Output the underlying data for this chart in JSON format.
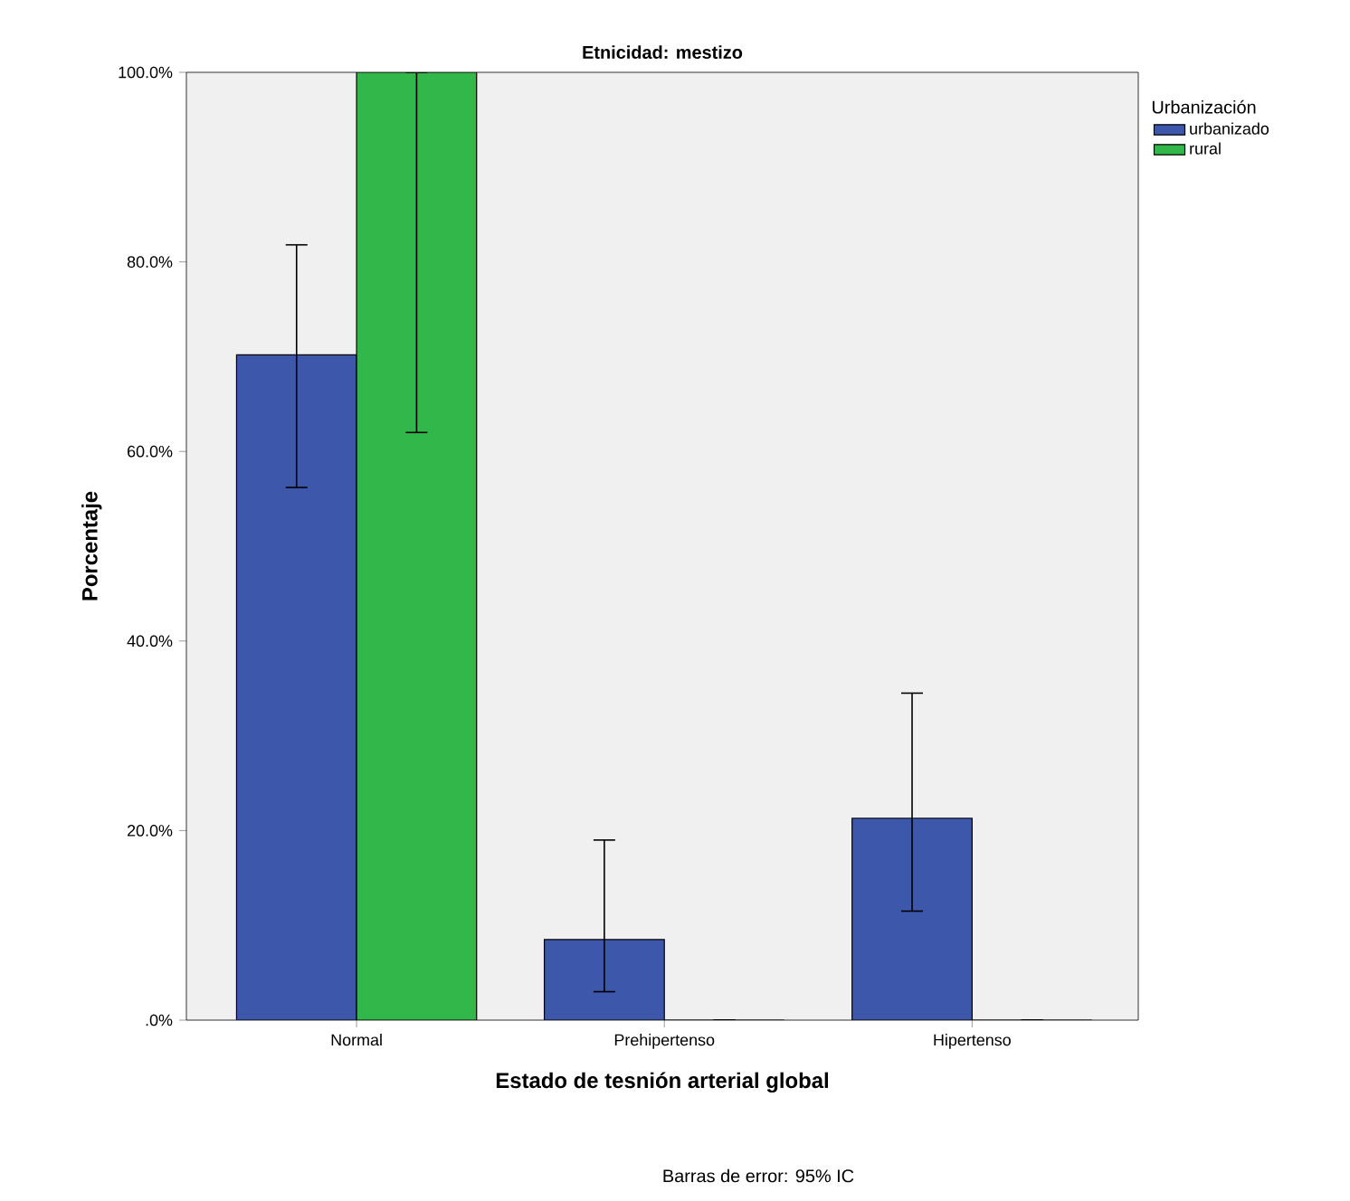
{
  "chart_data": {
    "type": "bar",
    "title": "Etnicidad: mestizo",
    "xlabel": "Estado de tesnión arterial global",
    "ylabel": "Porcentaje",
    "legend_title": "Urbanización",
    "legend": "right",
    "categories": [
      "Normal",
      "Prehipertenso",
      "Hipertenso"
    ],
    "series": [
      {
        "name": "urbanizado",
        "color": "#3d57aa",
        "values": [
          70.2,
          8.5,
          21.3
        ],
        "errors": [
          [
            56.2,
            81.8
          ],
          [
            3.0,
            19.0
          ],
          [
            11.5,
            34.5
          ]
        ]
      },
      {
        "name": "rural",
        "color": "#32b84a",
        "values": [
          100,
          0,
          0
        ],
        "errors": [
          [
            62.0,
            100
          ],
          null,
          null
        ]
      }
    ],
    "ylim": [
      0,
      100
    ],
    "yticks": [
      {
        "value": 0,
        "label": ".0%"
      },
      {
        "value": 20,
        "label": "20.0%"
      },
      {
        "value": 40,
        "label": "40.0%"
      },
      {
        "value": 60,
        "label": "60.0%"
      },
      {
        "value": 80,
        "label": "80.0%"
      },
      {
        "value": 100,
        "label": "100.0%"
      }
    ],
    "annotations": [
      "Barras de error: 95% IC"
    ]
  }
}
